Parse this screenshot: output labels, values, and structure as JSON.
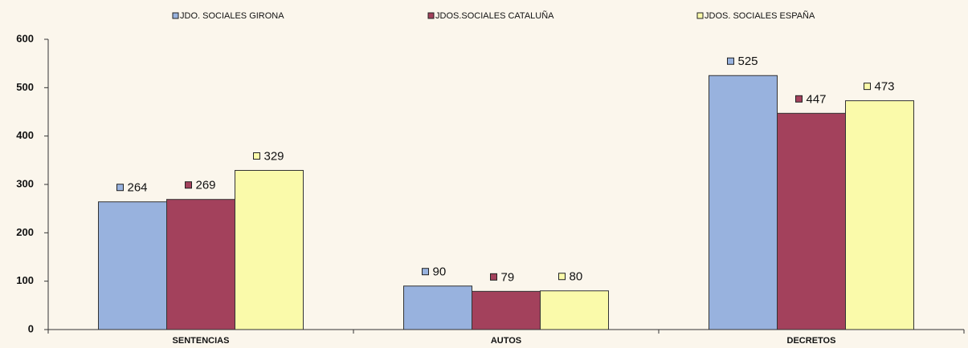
{
  "chart_data": {
    "type": "bar",
    "categories": [
      "SENTENCIAS",
      "AUTOS",
      "DECRETOS"
    ],
    "series": [
      {
        "name": "JDO. SOCIALES GIRONA",
        "color": "#98b2de",
        "values": [
          264,
          90,
          525
        ]
      },
      {
        "name": "JDOS.SOCIALES CATALUÑA",
        "color": "#a3415c",
        "values": [
          269,
          79,
          447
        ]
      },
      {
        "name": "JDOS. SOCIALES ESPAÑA",
        "color": "#fafaaa",
        "values": [
          329,
          80,
          473
        ]
      }
    ],
    "ylim": [
      0,
      600
    ],
    "yticks": [
      0,
      100,
      200,
      300,
      400,
      500,
      600
    ],
    "grid": false,
    "legend": "top"
  }
}
